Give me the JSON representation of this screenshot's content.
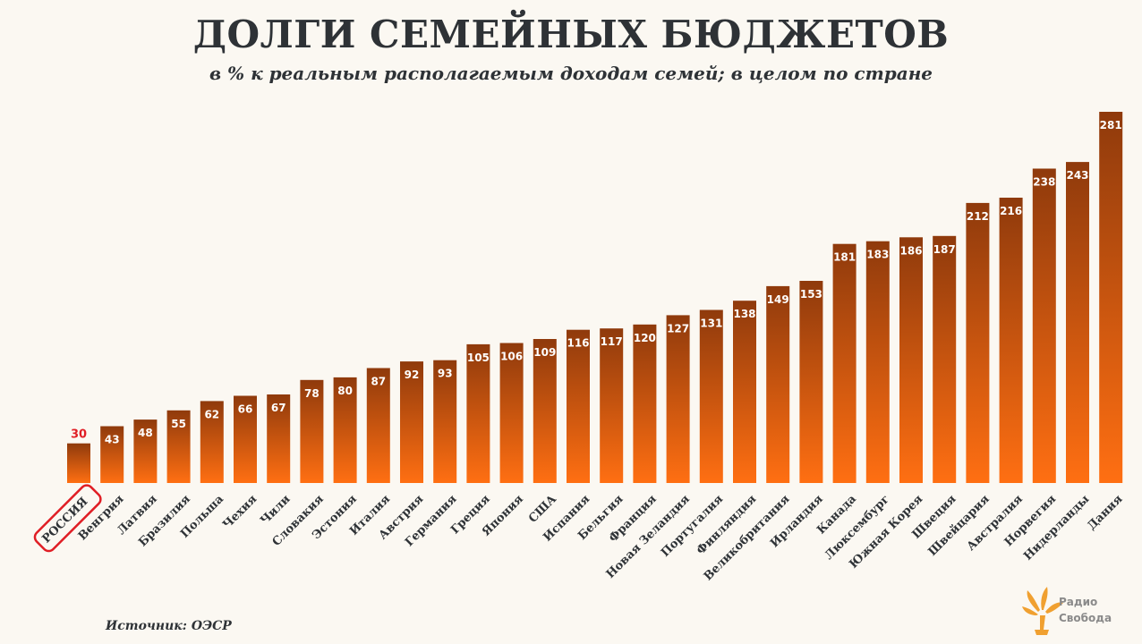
{
  "colors": {
    "bar_top": "#8f3a0c",
    "bar_bottom": "#ff6f12",
    "highlight": "#e01e25",
    "text": "#2e3236",
    "logo": "#f0a030"
  },
  "header": {
    "title": "ДОЛГИ СЕМЕЙНЫХ БЮДЖЕТОВ",
    "subtitle": "в % к реальным располагаемым доходам семей; в целом по стране"
  },
  "footer": {
    "source": "Источник: ОЭСР",
    "logo_line1": "Радио",
    "logo_line2": "Свобода"
  },
  "chart_data": {
    "type": "bar",
    "title": "ДОЛГИ СЕМЕЙНЫХ БЮДЖЕТОВ",
    "subtitle": "в % к реальным располагаемым доходам семей; в целом по стране",
    "xlabel": "",
    "ylabel": "",
    "ylim": [
      0,
      300
    ],
    "grid": false,
    "highlight_category": "РОССИЯ",
    "categories": [
      "РОССИЯ",
      "Венгрия",
      "Латвия",
      "Бразилия",
      "Польша",
      "Чехия",
      "Чили",
      "Словакия",
      "Эстония",
      "Италия",
      "Австрия",
      "Германия",
      "Греция",
      "Япония",
      "США",
      "Испания",
      "Бельгия",
      "Франция",
      "Новая Зеландия",
      "Португалия",
      "Финляндия",
      "Великобритания",
      "Ирландия",
      "Канада",
      "Люксембург",
      "Южная Корея",
      "Швеция",
      "Швейцария",
      "Австралия",
      "Норвегия",
      "Нидерланды",
      "Дания"
    ],
    "values": [
      30,
      43,
      48,
      55,
      62,
      66,
      67,
      78,
      80,
      87,
      92,
      93,
      105,
      106,
      109,
      116,
      117,
      120,
      127,
      131,
      138,
      149,
      153,
      181,
      183,
      186,
      187,
      212,
      216,
      238,
      243,
      281
    ]
  }
}
